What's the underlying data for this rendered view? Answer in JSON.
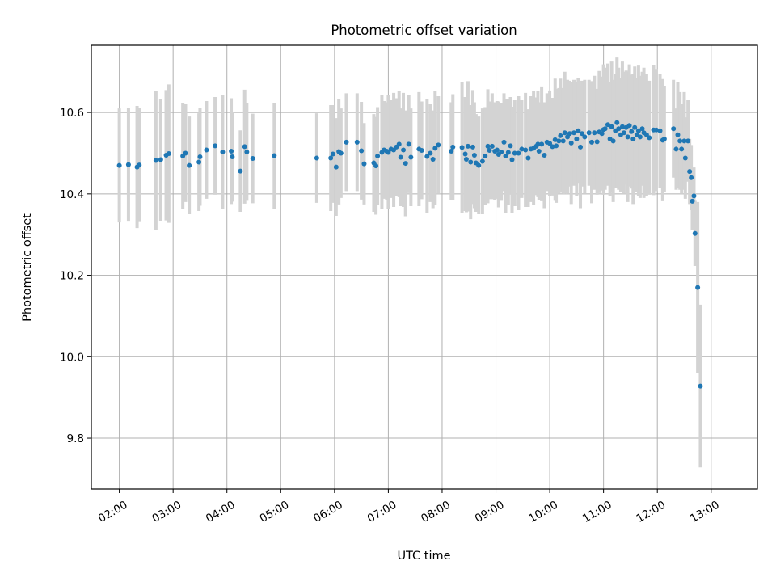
{
  "chart_data": {
    "type": "scatter",
    "title": "Photometric offset variation",
    "xlabel": "UTC time",
    "ylabel": "Photometric offset",
    "x_unit": "hours UTC",
    "xlim": [
      1.48,
      13.86
    ],
    "ylim": [
      9.675,
      10.765
    ],
    "x_ticks": [
      {
        "value": 2,
        "label": "02:00"
      },
      {
        "value": 3,
        "label": "03:00"
      },
      {
        "value": 4,
        "label": "04:00"
      },
      {
        "value": 5,
        "label": "05:00"
      },
      {
        "value": 6,
        "label": "06:00"
      },
      {
        "value": 7,
        "label": "07:00"
      },
      {
        "value": 8,
        "label": "08:00"
      },
      {
        "value": 9,
        "label": "09:00"
      },
      {
        "value": 10,
        "label": "10:00"
      },
      {
        "value": 11,
        "label": "11:00"
      },
      {
        "value": 12,
        "label": "12:00"
      },
      {
        "value": 13,
        "label": "13:00"
      }
    ],
    "y_ticks": [
      {
        "value": 9.8,
        "label": "9.8"
      },
      {
        "value": 10.0,
        "label": "10.0"
      },
      {
        "value": 10.2,
        "label": "10.2"
      },
      {
        "value": 10.4,
        "label": "10.4"
      },
      {
        "value": 10.6,
        "label": "10.6"
      }
    ],
    "grid": true,
    "colors": {
      "marker": "#1f77b4",
      "errorbar": "#d3d3d3",
      "grid": "#b0b0b0",
      "axes": "#000000"
    },
    "series": [
      {
        "points": [
          [
            2.0,
            10.47,
            0.14
          ],
          [
            2.17,
            10.472,
            0.14
          ],
          [
            2.33,
            10.466,
            0.15
          ],
          [
            2.37,
            10.471,
            0.14
          ],
          [
            2.68,
            10.482,
            0.17
          ],
          [
            2.77,
            10.484,
            0.15
          ],
          [
            2.87,
            10.495,
            0.16
          ],
          [
            2.92,
            10.499,
            0.17
          ],
          [
            3.18,
            10.493,
            0.13
          ],
          [
            3.23,
            10.5,
            0.12
          ],
          [
            3.3,
            10.47,
            0.12
          ],
          [
            3.48,
            10.478,
            0.12
          ],
          [
            3.5,
            10.491,
            0.12
          ],
          [
            3.62,
            10.508,
            0.12
          ],
          [
            3.78,
            10.518,
            0.12
          ],
          [
            3.92,
            10.503,
            0.14
          ],
          [
            4.08,
            10.505,
            0.13
          ],
          [
            4.1,
            10.491,
            0.11
          ],
          [
            4.25,
            10.456,
            0.1
          ],
          [
            4.33,
            10.516,
            0.14
          ],
          [
            4.37,
            10.503,
            0.12
          ],
          [
            4.48,
            10.487,
            0.11
          ],
          [
            4.88,
            10.494,
            0.13
          ],
          [
            5.67,
            10.488,
            0.11
          ],
          [
            5.93,
            10.488,
            0.13
          ],
          [
            5.97,
            10.498,
            0.12
          ],
          [
            6.03,
            10.466,
            0.12
          ],
          [
            6.08,
            10.504,
            0.13
          ],
          [
            6.12,
            10.5,
            0.11
          ],
          [
            6.22,
            10.527,
            0.12
          ],
          [
            6.42,
            10.527,
            0.12
          ],
          [
            6.5,
            10.506,
            0.12
          ],
          [
            6.55,
            10.474,
            0.1
          ],
          [
            6.73,
            10.476,
            0.12
          ],
          [
            6.77,
            10.469,
            0.12
          ],
          [
            6.8,
            10.493,
            0.12
          ],
          [
            6.88,
            10.502,
            0.14
          ],
          [
            6.92,
            10.508,
            0.12
          ],
          [
            6.97,
            10.505,
            0.12
          ],
          [
            7.0,
            10.502,
            0.14
          ],
          [
            7.05,
            10.51,
            0.12
          ],
          [
            7.1,
            10.508,
            0.14
          ],
          [
            7.15,
            10.515,
            0.12
          ],
          [
            7.2,
            10.522,
            0.13
          ],
          [
            7.23,
            10.49,
            0.12
          ],
          [
            7.28,
            10.508,
            0.14
          ],
          [
            7.32,
            10.475,
            0.13
          ],
          [
            7.38,
            10.522,
            0.12
          ],
          [
            7.42,
            10.49,
            0.12
          ],
          [
            7.57,
            10.51,
            0.14
          ],
          [
            7.62,
            10.507,
            0.12
          ],
          [
            7.72,
            10.492,
            0.14
          ],
          [
            7.78,
            10.5,
            0.12
          ],
          [
            7.83,
            10.485,
            0.12
          ],
          [
            7.87,
            10.512,
            0.14
          ],
          [
            7.93,
            10.52,
            0.12
          ],
          [
            8.17,
            10.505,
            0.12
          ],
          [
            8.2,
            10.515,
            0.13
          ],
          [
            8.37,
            10.514,
            0.16
          ],
          [
            8.43,
            10.498,
            0.14
          ],
          [
            8.45,
            10.485,
            0.13
          ],
          [
            8.48,
            10.517,
            0.16
          ],
          [
            8.53,
            10.478,
            0.14
          ],
          [
            8.57,
            10.515,
            0.14
          ],
          [
            8.6,
            10.495,
            0.13
          ],
          [
            8.63,
            10.476,
            0.12
          ],
          [
            8.68,
            10.47,
            0.12
          ],
          [
            8.75,
            10.48,
            0.13
          ],
          [
            8.8,
            10.493,
            0.12
          ],
          [
            8.85,
            10.517,
            0.14
          ],
          [
            8.88,
            10.507,
            0.12
          ],
          [
            8.93,
            10.517,
            0.13
          ],
          [
            8.98,
            10.505,
            0.12
          ],
          [
            9.02,
            10.508,
            0.12
          ],
          [
            9.05,
            10.497,
            0.13
          ],
          [
            9.1,
            10.503,
            0.12
          ],
          [
            9.15,
            10.527,
            0.12
          ],
          [
            9.18,
            10.493,
            0.14
          ],
          [
            9.23,
            10.502,
            0.13
          ],
          [
            9.27,
            10.518,
            0.12
          ],
          [
            9.3,
            10.484,
            0.13
          ],
          [
            9.35,
            10.5,
            0.13
          ],
          [
            9.42,
            10.5,
            0.14
          ],
          [
            9.48,
            10.51,
            0.12
          ],
          [
            9.55,
            10.508,
            0.14
          ],
          [
            9.6,
            10.488,
            0.12
          ],
          [
            9.65,
            10.51,
            0.13
          ],
          [
            9.7,
            10.512,
            0.14
          ],
          [
            9.75,
            10.517,
            0.12
          ],
          [
            9.78,
            10.522,
            0.13
          ],
          [
            9.8,
            10.505,
            0.12
          ],
          [
            9.85,
            10.522,
            0.14
          ],
          [
            9.9,
            10.495,
            0.13
          ],
          [
            9.95,
            10.527,
            0.12
          ],
          [
            10.0,
            10.524,
            0.13
          ],
          [
            10.05,
            10.516,
            0.12
          ],
          [
            10.1,
            10.533,
            0.15
          ],
          [
            10.12,
            10.518,
            0.14
          ],
          [
            10.17,
            10.53,
            0.13
          ],
          [
            10.2,
            10.543,
            0.14
          ],
          [
            10.25,
            10.53,
            0.13
          ],
          [
            10.28,
            10.55,
            0.15
          ],
          [
            10.33,
            10.54,
            0.14
          ],
          [
            10.37,
            10.548,
            0.13
          ],
          [
            10.4,
            10.525,
            0.15
          ],
          [
            10.45,
            10.55,
            0.13
          ],
          [
            10.5,
            10.535,
            0.14
          ],
          [
            10.53,
            10.555,
            0.13
          ],
          [
            10.57,
            10.515,
            0.15
          ],
          [
            10.6,
            10.548,
            0.13
          ],
          [
            10.65,
            10.54,
            0.14
          ],
          [
            10.73,
            10.55,
            0.13
          ],
          [
            10.78,
            10.527,
            0.15
          ],
          [
            10.83,
            10.55,
            0.14
          ],
          [
            10.88,
            10.528,
            0.13
          ],
          [
            10.92,
            10.552,
            0.15
          ],
          [
            10.97,
            10.548,
            0.14
          ],
          [
            11.0,
            10.558,
            0.16
          ],
          [
            11.03,
            10.56,
            0.15
          ],
          [
            11.08,
            10.57,
            0.15
          ],
          [
            11.12,
            10.535,
            0.14
          ],
          [
            11.15,
            10.565,
            0.16
          ],
          [
            11.18,
            10.53,
            0.15
          ],
          [
            11.22,
            10.555,
            0.14
          ],
          [
            11.25,
            10.575,
            0.16
          ],
          [
            11.28,
            10.56,
            0.15
          ],
          [
            11.32,
            10.545,
            0.14
          ],
          [
            11.35,
            10.565,
            0.16
          ],
          [
            11.38,
            10.55,
            0.15
          ],
          [
            11.42,
            10.563,
            0.14
          ],
          [
            11.45,
            10.54,
            0.16
          ],
          [
            11.48,
            10.568,
            0.15
          ],
          [
            11.52,
            10.553,
            0.14
          ],
          [
            11.55,
            10.535,
            0.16
          ],
          [
            11.58,
            10.563,
            0.15
          ],
          [
            11.62,
            10.545,
            0.14
          ],
          [
            11.65,
            10.555,
            0.16
          ],
          [
            11.68,
            10.54,
            0.15
          ],
          [
            11.72,
            10.56,
            0.14
          ],
          [
            11.75,
            10.55,
            0.16
          ],
          [
            11.8,
            10.545,
            0.15
          ],
          [
            11.85,
            10.538,
            0.14
          ],
          [
            11.93,
            10.557,
            0.16
          ],
          [
            11.98,
            10.557,
            0.15
          ],
          [
            12.05,
            10.555,
            0.14
          ],
          [
            12.1,
            10.532,
            0.15
          ],
          [
            12.13,
            10.535,
            0.13
          ],
          [
            12.3,
            10.56,
            0.12
          ],
          [
            12.35,
            10.51,
            0.1
          ],
          [
            12.38,
            10.545,
            0.13
          ],
          [
            12.42,
            10.53,
            0.12
          ],
          [
            12.45,
            10.51,
            0.11
          ],
          [
            12.5,
            10.53,
            0.12
          ],
          [
            12.52,
            10.488,
            0.1
          ],
          [
            12.57,
            10.53,
            0.1
          ],
          [
            12.6,
            10.455,
            0.08
          ],
          [
            12.63,
            10.44,
            0.08
          ],
          [
            12.65,
            10.382,
            0.07
          ],
          [
            12.68,
            10.395,
            0.07
          ],
          [
            12.7,
            10.303,
            0.08
          ],
          [
            12.75,
            10.17,
            0.21
          ],
          [
            12.8,
            9.928,
            0.2
          ]
        ]
      }
    ]
  }
}
